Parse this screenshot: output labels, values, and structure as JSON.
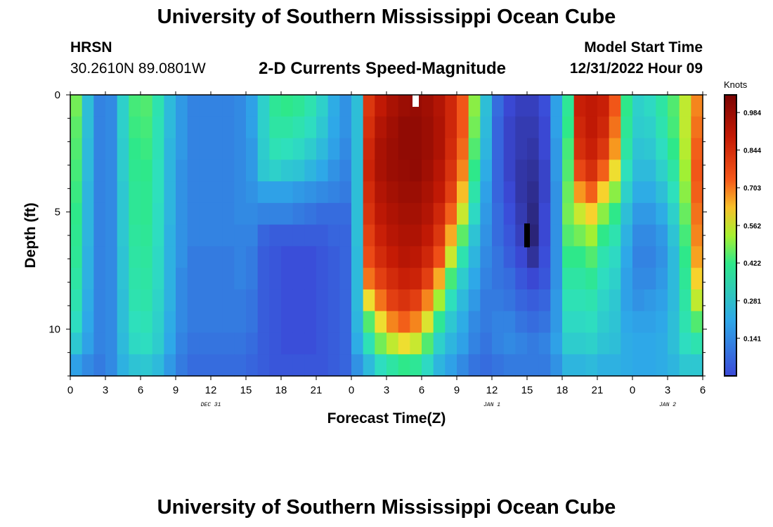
{
  "header": {
    "title": "University of Southern Mississippi Ocean Cube",
    "station": "HRSN",
    "coords": "30.2610N  89.0801W",
    "subtitle": "2-D Currents Speed-Magnitude",
    "start_label": "Model Start Time",
    "start_value": "12/31/2022 Hour 09"
  },
  "footer": {
    "title": "University of Southern Mississippi Ocean Cube"
  },
  "chart_data": {
    "type": "heatmap",
    "title": "2-D Currents Speed-Magnitude",
    "xlabel": "Forecast Time(Z)",
    "ylabel": "Depth (ft)",
    "colorbar_label": "Knots",
    "colorbar_ticks": [
      "0.984",
      "0.844",
      "0.703",
      "0.562",
      "0.422",
      "0.281",
      "0.141"
    ],
    "colorbar_range": [
      0.0,
      1.05
    ],
    "x_range_hours": [
      0,
      54
    ],
    "x_ticks": [
      "0",
      "3",
      "6",
      "9",
      "12",
      "15",
      "18",
      "21",
      "0",
      "3",
      "6",
      "9",
      "12",
      "15",
      "18",
      "21",
      "0",
      "3",
      "6"
    ],
    "date_labels": [
      {
        "text": "DEC 31",
        "hour": 12
      },
      {
        "text": "JAN 1",
        "hour": 36
      },
      {
        "text": "JAN 2",
        "hour": 51
      }
    ],
    "y_range_ft": [
      0,
      12
    ],
    "y_ticks": [
      0,
      5,
      10
    ],
    "y_direction": "depth increasing downward",
    "grid": false,
    "depth_rows_ft": [
      0,
      1,
      2,
      3,
      4,
      5,
      6,
      7,
      8,
      9,
      10,
      11,
      12
    ],
    "columns": [
      {
        "hour": 0,
        "speeds": [
          0.48,
          0.46,
          0.45,
          0.44,
          0.43,
          0.42,
          0.41,
          0.4,
          0.38,
          0.36,
          0.33,
          0.28,
          0.2
        ]
      },
      {
        "hour": 1,
        "speeds": [
          0.26,
          0.26,
          0.25,
          0.25,
          0.24,
          0.24,
          0.24,
          0.23,
          0.23,
          0.22,
          0.21,
          0.2,
          0.17
        ]
      },
      {
        "hour": 2,
        "speeds": [
          0.16,
          0.16,
          0.16,
          0.16,
          0.16,
          0.16,
          0.16,
          0.16,
          0.16,
          0.16,
          0.16,
          0.16,
          0.15
        ]
      },
      {
        "hour": 3,
        "speeds": [
          0.17,
          0.17,
          0.17,
          0.17,
          0.17,
          0.17,
          0.17,
          0.17,
          0.17,
          0.17,
          0.17,
          0.17,
          0.17
        ]
      },
      {
        "hour": 4,
        "speeds": [
          0.3,
          0.3,
          0.29,
          0.29,
          0.28,
          0.28,
          0.28,
          0.27,
          0.27,
          0.26,
          0.26,
          0.25,
          0.23
        ]
      },
      {
        "hour": 5,
        "speeds": [
          0.44,
          0.43,
          0.42,
          0.41,
          0.4,
          0.4,
          0.39,
          0.38,
          0.37,
          0.36,
          0.34,
          0.32,
          0.27
        ]
      },
      {
        "hour": 6,
        "speeds": [
          0.45,
          0.44,
          0.43,
          0.42,
          0.41,
          0.41,
          0.4,
          0.39,
          0.38,
          0.37,
          0.35,
          0.33,
          0.28
        ]
      },
      {
        "hour": 7,
        "speeds": [
          0.36,
          0.35,
          0.35,
          0.34,
          0.34,
          0.33,
          0.33,
          0.32,
          0.32,
          0.31,
          0.3,
          0.29,
          0.25
        ]
      },
      {
        "hour": 8,
        "speeds": [
          0.25,
          0.25,
          0.24,
          0.24,
          0.24,
          0.24,
          0.23,
          0.23,
          0.23,
          0.23,
          0.22,
          0.21,
          0.19
        ]
      },
      {
        "hour": 9,
        "speeds": [
          0.19,
          0.19,
          0.19,
          0.18,
          0.18,
          0.18,
          0.18,
          0.18,
          0.17,
          0.17,
          0.17,
          0.16,
          0.15
        ]
      },
      {
        "hour": 10,
        "speeds": [
          0.16,
          0.16,
          0.16,
          0.16,
          0.16,
          0.16,
          0.16,
          0.15,
          0.15,
          0.15,
          0.15,
          0.14,
          0.13
        ]
      },
      {
        "hour": 11,
        "speeds": [
          0.16,
          0.16,
          0.16,
          0.16,
          0.16,
          0.16,
          0.16,
          0.15,
          0.15,
          0.15,
          0.15,
          0.14,
          0.13
        ]
      },
      {
        "hour": 12,
        "speeds": [
          0.16,
          0.16,
          0.16,
          0.16,
          0.16,
          0.16,
          0.16,
          0.15,
          0.15,
          0.15,
          0.15,
          0.14,
          0.13
        ]
      },
      {
        "hour": 13,
        "speeds": [
          0.16,
          0.16,
          0.16,
          0.16,
          0.16,
          0.16,
          0.16,
          0.15,
          0.15,
          0.15,
          0.15,
          0.14,
          0.13
        ]
      },
      {
        "hour": 14,
        "speeds": [
          0.17,
          0.17,
          0.17,
          0.17,
          0.17,
          0.17,
          0.16,
          0.16,
          0.16,
          0.15,
          0.15,
          0.14,
          0.13
        ]
      },
      {
        "hour": 15,
        "speeds": [
          0.2,
          0.2,
          0.19,
          0.19,
          0.18,
          0.17,
          0.16,
          0.15,
          0.15,
          0.14,
          0.14,
          0.13,
          0.12
        ]
      },
      {
        "hour": 16,
        "speeds": [
          0.3,
          0.3,
          0.29,
          0.28,
          0.2,
          0.16,
          0.12,
          0.11,
          0.11,
          0.11,
          0.11,
          0.11,
          0.11
        ]
      },
      {
        "hour": 17,
        "speeds": [
          0.4,
          0.38,
          0.35,
          0.3,
          0.2,
          0.16,
          0.11,
          0.1,
          0.1,
          0.1,
          0.1,
          0.1,
          0.1
        ]
      },
      {
        "hour": 18,
        "speeds": [
          0.42,
          0.38,
          0.34,
          0.28,
          0.2,
          0.16,
          0.11,
          0.09,
          0.09,
          0.09,
          0.09,
          0.09,
          0.1
        ]
      },
      {
        "hour": 19,
        "speeds": [
          0.4,
          0.36,
          0.32,
          0.27,
          0.19,
          0.15,
          0.11,
          0.09,
          0.09,
          0.09,
          0.09,
          0.09,
          0.1
        ]
      },
      {
        "hour": 20,
        "speeds": [
          0.36,
          0.33,
          0.29,
          0.24,
          0.18,
          0.14,
          0.11,
          0.09,
          0.09,
          0.09,
          0.09,
          0.09,
          0.1
        ]
      },
      {
        "hour": 21,
        "speeds": [
          0.3,
          0.28,
          0.25,
          0.21,
          0.17,
          0.13,
          0.11,
          0.1,
          0.1,
          0.1,
          0.1,
          0.1,
          0.1
        ]
      },
      {
        "hour": 22,
        "speeds": [
          0.22,
          0.21,
          0.2,
          0.18,
          0.16,
          0.13,
          0.12,
          0.11,
          0.11,
          0.11,
          0.11,
          0.11,
          0.11
        ]
      },
      {
        "hour": 23,
        "speeds": [
          0.18,
          0.18,
          0.17,
          0.16,
          0.15,
          0.13,
          0.12,
          0.12,
          0.12,
          0.12,
          0.12,
          0.12,
          0.12
        ]
      },
      {
        "hour": 24,
        "speeds": [
          0.26,
          0.26,
          0.26,
          0.26,
          0.26,
          0.26,
          0.26,
          0.25,
          0.25,
          0.25,
          0.24,
          0.22,
          0.18
        ]
      },
      {
        "hour": 25,
        "speeds": [
          0.82,
          0.84,
          0.86,
          0.87,
          0.85,
          0.83,
          0.8,
          0.77,
          0.72,
          0.6,
          0.45,
          0.35,
          0.25
        ]
      },
      {
        "hour": 26,
        "speeds": [
          0.9,
          0.93,
          0.95,
          0.95,
          0.93,
          0.91,
          0.88,
          0.85,
          0.8,
          0.72,
          0.6,
          0.48,
          0.33
        ]
      },
      {
        "hour": 27,
        "speeds": [
          0.95,
          0.97,
          0.98,
          0.98,
          0.96,
          0.94,
          0.92,
          0.89,
          0.85,
          0.8,
          0.7,
          0.55,
          0.38
        ]
      },
      {
        "hour": 28,
        "speeds": [
          0.98,
          1.0,
          1.0,
          0.99,
          0.98,
          0.96,
          0.94,
          0.92,
          0.88,
          0.83,
          0.74,
          0.6,
          0.42
        ]
      },
      {
        "hour": 29,
        "speeds": [
          0.99,
          1.0,
          1.0,
          1.0,
          0.98,
          0.96,
          0.94,
          0.91,
          0.87,
          0.8,
          0.7,
          0.56,
          0.4
        ]
      },
      {
        "hour": 30,
        "speeds": [
          0.97,
          0.98,
          0.98,
          0.97,
          0.95,
          0.93,
          0.9,
          0.86,
          0.8,
          0.7,
          0.58,
          0.45,
          0.32
        ]
      },
      {
        "hour": 31,
        "speeds": [
          0.93,
          0.94,
          0.94,
          0.92,
          0.9,
          0.86,
          0.82,
          0.76,
          0.66,
          0.52,
          0.4,
          0.3,
          0.24
        ]
      },
      {
        "hour": 32,
        "speeds": [
          0.86,
          0.86,
          0.85,
          0.83,
          0.8,
          0.74,
          0.66,
          0.56,
          0.44,
          0.34,
          0.28,
          0.24,
          0.2
        ]
      },
      {
        "hour": 33,
        "speeds": [
          0.75,
          0.75,
          0.73,
          0.7,
          0.64,
          0.56,
          0.46,
          0.36,
          0.29,
          0.25,
          0.22,
          0.2,
          0.17
        ]
      },
      {
        "hour": 34,
        "speeds": [
          0.5,
          0.48,
          0.45,
          0.42,
          0.37,
          0.32,
          0.27,
          0.24,
          0.21,
          0.19,
          0.17,
          0.16,
          0.14
        ]
      },
      {
        "hour": 35,
        "speeds": [
          0.26,
          0.25,
          0.24,
          0.22,
          0.2,
          0.19,
          0.18,
          0.17,
          0.16,
          0.15,
          0.15,
          0.14,
          0.13
        ]
      },
      {
        "hour": 36,
        "speeds": [
          0.13,
          0.12,
          0.12,
          0.12,
          0.12,
          0.13,
          0.13,
          0.14,
          0.14,
          0.15,
          0.16,
          0.16,
          0.14
        ]
      },
      {
        "hour": 37,
        "speeds": [
          0.08,
          0.07,
          0.07,
          0.07,
          0.08,
          0.09,
          0.1,
          0.11,
          0.13,
          0.14,
          0.16,
          0.17,
          0.15
        ]
      },
      {
        "hour": 38,
        "speeds": [
          0.06,
          0.05,
          0.05,
          0.04,
          0.04,
          0.05,
          0.06,
          0.08,
          0.1,
          0.12,
          0.14,
          0.16,
          0.15
        ]
      },
      {
        "hour": 39,
        "speeds": [
          0.06,
          0.05,
          0.04,
          0.03,
          0.02,
          0.01,
          0.0,
          0.03,
          0.08,
          0.11,
          0.13,
          0.15,
          0.15
        ]
      },
      {
        "hour": 40,
        "speeds": [
          0.09,
          0.08,
          0.08,
          0.07,
          0.07,
          0.08,
          0.08,
          0.09,
          0.1,
          0.12,
          0.14,
          0.16,
          0.15
        ]
      },
      {
        "hour": 41,
        "speeds": [
          0.2,
          0.2,
          0.19,
          0.19,
          0.18,
          0.18,
          0.18,
          0.18,
          0.18,
          0.19,
          0.19,
          0.2,
          0.18
        ]
      },
      {
        "hour": 42,
        "speeds": [
          0.4,
          0.42,
          0.44,
          0.45,
          0.47,
          0.48,
          0.45,
          0.42,
          0.38,
          0.35,
          0.32,
          0.29,
          0.24
        ]
      },
      {
        "hour": 43,
        "speeds": [
          0.88,
          0.86,
          0.84,
          0.78,
          0.68,
          0.56,
          0.48,
          0.42,
          0.38,
          0.35,
          0.32,
          0.29,
          0.24
        ]
      },
      {
        "hour": 44,
        "speeds": [
          0.9,
          0.9,
          0.88,
          0.84,
          0.74,
          0.62,
          0.52,
          0.45,
          0.4,
          0.36,
          0.33,
          0.3,
          0.25
        ]
      },
      {
        "hour": 45,
        "speeds": [
          0.88,
          0.86,
          0.82,
          0.74,
          0.62,
          0.5,
          0.42,
          0.36,
          0.33,
          0.31,
          0.29,
          0.27,
          0.23
        ]
      },
      {
        "hour": 46,
        "speeds": [
          0.75,
          0.72,
          0.68,
          0.6,
          0.5,
          0.42,
          0.36,
          0.32,
          0.3,
          0.28,
          0.27,
          0.26,
          0.23
        ]
      },
      {
        "hour": 47,
        "speeds": [
          0.42,
          0.4,
          0.38,
          0.34,
          0.3,
          0.26,
          0.23,
          0.21,
          0.2,
          0.2,
          0.21,
          0.22,
          0.22
        ]
      },
      {
        "hour": 48,
        "speeds": [
          0.3,
          0.29,
          0.27,
          0.25,
          0.22,
          0.19,
          0.17,
          0.16,
          0.17,
          0.18,
          0.2,
          0.21,
          0.21
        ]
      },
      {
        "hour": 49,
        "speeds": [
          0.32,
          0.3,
          0.28,
          0.25,
          0.22,
          0.19,
          0.17,
          0.16,
          0.17,
          0.19,
          0.2,
          0.21,
          0.21
        ]
      },
      {
        "hour": 50,
        "speeds": [
          0.38,
          0.36,
          0.33,
          0.3,
          0.26,
          0.22,
          0.19,
          0.18,
          0.19,
          0.2,
          0.21,
          0.22,
          0.22
        ]
      },
      {
        "hour": 51,
        "speeds": [
          0.45,
          0.44,
          0.42,
          0.38,
          0.34,
          0.3,
          0.27,
          0.25,
          0.25,
          0.25,
          0.26,
          0.26,
          0.24
        ]
      },
      {
        "hour": 52,
        "speeds": [
          0.55,
          0.55,
          0.54,
          0.52,
          0.5,
          0.47,
          0.44,
          0.42,
          0.4,
          0.38,
          0.36,
          0.33,
          0.28
        ]
      },
      {
        "hour": 53,
        "speeds": [
          0.7,
          0.72,
          0.74,
          0.75,
          0.74,
          0.72,
          0.7,
          0.67,
          0.62,
          0.55,
          0.45,
          0.36,
          0.28
        ]
      }
    ]
  }
}
